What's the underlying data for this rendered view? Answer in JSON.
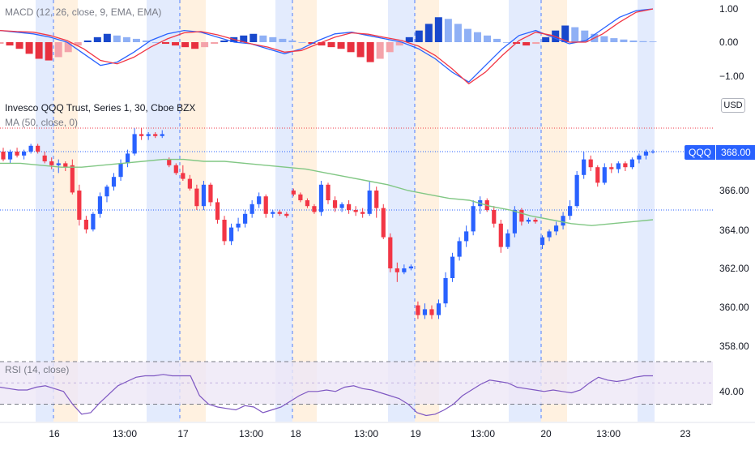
{
  "colors": {
    "up": "#2962ff",
    "down": "#f23645",
    "ma": "#81c784",
    "macd_line": "#2962ff",
    "signal_line": "#f23645",
    "rsi_line": "#7e57c2",
    "rsi_band": "#ede7f6",
    "session_blue": "#e3ebfd",
    "session_orange": "#fff1e0",
    "grid_dash": "#2962ff"
  },
  "macd": {
    "legend": "MACD (12, 26, close, 9, EMA, EMA)",
    "axis_ticks": [
      "1.00",
      "0.00",
      "−1.00"
    ]
  },
  "price": {
    "legend": "Invesco QQQ Trust, Series 1, 30, Cboe BZX",
    "ma_legend": "MA (50, close, 0)",
    "currency": "USD",
    "symbol": "QQQ",
    "last": "368.00",
    "axis_ticks": [
      "366.00",
      "364.00",
      "362.00",
      "360.00",
      "358.00"
    ]
  },
  "rsi": {
    "legend": "RSI (14, close)",
    "axis_tick": "40.00"
  },
  "time_axis": [
    "16",
    "13:00",
    "17",
    "13:00",
    "18",
    "13:00",
    "19",
    "13:00",
    "20",
    "13:00",
    "23"
  ],
  "chart_data": {
    "type": "candlestick",
    "title": "Invesco QQQ Trust, Series 1, 30, Cboe BZX",
    "ylim": [
      357.2,
      371.2
    ],
    "candles": [
      {
        "o": 368.0,
        "h": 368.2,
        "l": 367.5,
        "c": 367.6
      },
      {
        "o": 367.6,
        "h": 368.1,
        "l": 367.4,
        "c": 368.0
      },
      {
        "o": 368.0,
        "h": 368.2,
        "l": 367.7,
        "c": 367.8
      },
      {
        "o": 367.8,
        "h": 368.1,
        "l": 367.6,
        "c": 368.0
      },
      {
        "o": 368.0,
        "h": 368.4,
        "l": 367.9,
        "c": 368.3
      },
      {
        "o": 368.3,
        "h": 368.4,
        "l": 367.9,
        "c": 368.0
      },
      {
        "o": 367.8,
        "h": 368.0,
        "l": 367.4,
        "c": 367.5
      },
      {
        "o": 367.5,
        "h": 367.7,
        "l": 367.1,
        "c": 367.3
      },
      {
        "o": 367.3,
        "h": 367.6,
        "l": 366.9,
        "c": 367.4
      },
      {
        "o": 367.4,
        "h": 367.5,
        "l": 367.0,
        "c": 367.2
      },
      {
        "o": 367.3,
        "h": 367.6,
        "l": 365.8,
        "c": 365.9
      },
      {
        "o": 366.0,
        "h": 366.3,
        "l": 364.2,
        "c": 364.5
      },
      {
        "o": 364.5,
        "h": 364.7,
        "l": 363.8,
        "c": 364.0
      },
      {
        "o": 364.0,
        "h": 364.9,
        "l": 363.9,
        "c": 364.8
      },
      {
        "o": 364.8,
        "h": 365.9,
        "l": 364.6,
        "c": 365.7
      },
      {
        "o": 365.7,
        "h": 366.3,
        "l": 365.4,
        "c": 366.2
      },
      {
        "o": 366.2,
        "h": 366.9,
        "l": 366.0,
        "c": 366.7
      },
      {
        "o": 366.7,
        "h": 367.6,
        "l": 366.5,
        "c": 367.4
      },
      {
        "o": 367.4,
        "h": 368.1,
        "l": 367.2,
        "c": 367.9
      },
      {
        "o": 367.9,
        "h": 369.2,
        "l": 367.8,
        "c": 368.9
      },
      {
        "o": 368.9,
        "h": 369.2,
        "l": 368.6,
        "c": 368.8
      },
      {
        "o": 368.8,
        "h": 369.0,
        "l": 368.6,
        "c": 368.9
      },
      {
        "o": 368.9,
        "h": 369.0,
        "l": 368.7,
        "c": 368.8
      },
      {
        "o": 368.8,
        "h": 369.1,
        "l": 368.7,
        "c": 368.9
      },
      {
        "o": 367.6,
        "h": 367.7,
        "l": 367.2,
        "c": 367.3
      },
      {
        "o": 367.3,
        "h": 367.4,
        "l": 366.8,
        "c": 366.9
      },
      {
        "o": 366.9,
        "h": 367.3,
        "l": 366.5,
        "c": 366.6
      },
      {
        "o": 366.6,
        "h": 366.8,
        "l": 366.0,
        "c": 366.1
      },
      {
        "o": 366.1,
        "h": 366.3,
        "l": 365.0,
        "c": 365.2
      },
      {
        "o": 365.2,
        "h": 366.5,
        "l": 365.0,
        "c": 366.3
      },
      {
        "o": 366.3,
        "h": 366.4,
        "l": 365.2,
        "c": 365.4
      },
      {
        "o": 365.4,
        "h": 365.6,
        "l": 364.3,
        "c": 364.5
      },
      {
        "o": 364.5,
        "h": 364.7,
        "l": 363.2,
        "c": 363.4
      },
      {
        "o": 363.4,
        "h": 364.3,
        "l": 363.2,
        "c": 364.1
      },
      {
        "o": 364.1,
        "h": 364.6,
        "l": 363.9,
        "c": 364.3
      },
      {
        "o": 364.3,
        "h": 365.0,
        "l": 364.1,
        "c": 364.8
      },
      {
        "o": 364.8,
        "h": 365.5,
        "l": 364.6,
        "c": 365.3
      },
      {
        "o": 365.3,
        "h": 365.9,
        "l": 365.1,
        "c": 365.7
      },
      {
        "o": 365.7,
        "h": 365.8,
        "l": 364.6,
        "c": 364.8
      },
      {
        "o": 364.8,
        "h": 365.0,
        "l": 364.6,
        "c": 364.9
      },
      {
        "o": 364.9,
        "h": 365.0,
        "l": 364.7,
        "c": 364.8
      },
      {
        "o": 364.8,
        "h": 364.9,
        "l": 364.6,
        "c": 364.7
      },
      {
        "o": 366.0,
        "h": 366.1,
        "l": 365.7,
        "c": 365.8
      },
      {
        "o": 365.8,
        "h": 365.9,
        "l": 365.4,
        "c": 365.5
      },
      {
        "o": 365.5,
        "h": 365.6,
        "l": 365.1,
        "c": 365.2
      },
      {
        "o": 365.2,
        "h": 365.3,
        "l": 364.8,
        "c": 364.9
      },
      {
        "o": 364.9,
        "h": 366.5,
        "l": 364.7,
        "c": 366.3
      },
      {
        "o": 366.3,
        "h": 366.4,
        "l": 365.3,
        "c": 365.5
      },
      {
        "o": 365.5,
        "h": 365.7,
        "l": 364.9,
        "c": 365.1
      },
      {
        "o": 365.1,
        "h": 365.4,
        "l": 364.9,
        "c": 365.3
      },
      {
        "o": 365.3,
        "h": 365.5,
        "l": 364.8,
        "c": 365.0
      },
      {
        "o": 365.0,
        "h": 365.2,
        "l": 364.7,
        "c": 364.9
      },
      {
        "o": 364.9,
        "h": 365.1,
        "l": 364.6,
        "c": 364.8
      },
      {
        "o": 364.8,
        "h": 366.5,
        "l": 364.7,
        "c": 366.0
      },
      {
        "o": 366.0,
        "h": 366.2,
        "l": 364.6,
        "c": 365.1
      },
      {
        "o": 365.1,
        "h": 365.3,
        "l": 363.5,
        "c": 363.6
      },
      {
        "o": 363.6,
        "h": 363.8,
        "l": 361.8,
        "c": 362.0
      },
      {
        "o": 362.0,
        "h": 362.3,
        "l": 361.3,
        "c": 361.8
      },
      {
        "o": 361.8,
        "h": 362.2,
        "l": 361.7,
        "c": 362.0
      },
      {
        "o": 362.0,
        "h": 362.2,
        "l": 361.9,
        "c": 362.1
      },
      {
        "o": 360.1,
        "h": 360.3,
        "l": 359.4,
        "c": 359.6
      },
      {
        "o": 359.6,
        "h": 360.2,
        "l": 359.4,
        "c": 359.9
      },
      {
        "o": 359.9,
        "h": 360.1,
        "l": 359.4,
        "c": 359.6
      },
      {
        "o": 359.6,
        "h": 360.4,
        "l": 359.4,
        "c": 360.2
      },
      {
        "o": 360.2,
        "h": 361.8,
        "l": 360.0,
        "c": 361.5
      },
      {
        "o": 361.5,
        "h": 362.8,
        "l": 361.3,
        "c": 362.6
      },
      {
        "o": 362.6,
        "h": 363.6,
        "l": 362.4,
        "c": 363.4
      },
      {
        "o": 363.4,
        "h": 364.2,
        "l": 363.1,
        "c": 363.9
      },
      {
        "o": 363.9,
        "h": 365.5,
        "l": 363.7,
        "c": 365.2
      },
      {
        "o": 365.2,
        "h": 365.7,
        "l": 364.8,
        "c": 365.5
      },
      {
        "o": 365.5,
        "h": 365.6,
        "l": 364.9,
        "c": 365.0
      },
      {
        "o": 365.0,
        "h": 365.2,
        "l": 364.1,
        "c": 364.3
      },
      {
        "o": 364.3,
        "h": 364.5,
        "l": 362.8,
        "c": 363.1
      },
      {
        "o": 363.1,
        "h": 364.0,
        "l": 363.0,
        "c": 363.8
      },
      {
        "o": 363.8,
        "h": 365.2,
        "l": 363.6,
        "c": 365.0
      },
      {
        "o": 365.0,
        "h": 365.1,
        "l": 364.2,
        "c": 364.4
      },
      {
        "o": 364.4,
        "h": 364.6,
        "l": 364.3,
        "c": 364.5
      },
      {
        "o": 364.5,
        "h": 364.6,
        "l": 364.3,
        "c": 364.4
      },
      {
        "o": 363.2,
        "h": 363.7,
        "l": 363.0,
        "c": 363.6
      },
      {
        "o": 363.6,
        "h": 364.0,
        "l": 363.4,
        "c": 363.9
      },
      {
        "o": 363.9,
        "h": 364.4,
        "l": 363.7,
        "c": 364.2
      },
      {
        "o": 364.2,
        "h": 364.9,
        "l": 364.0,
        "c": 364.7
      },
      {
        "o": 364.7,
        "h": 365.5,
        "l": 364.5,
        "c": 365.2
      },
      {
        "o": 365.2,
        "h": 367.0,
        "l": 365.1,
        "c": 366.8
      },
      {
        "o": 366.8,
        "h": 368.0,
        "l": 366.6,
        "c": 367.6
      },
      {
        "o": 367.6,
        "h": 367.8,
        "l": 367.0,
        "c": 367.2
      },
      {
        "o": 367.2,
        "h": 367.3,
        "l": 366.2,
        "c": 366.4
      },
      {
        "o": 366.4,
        "h": 367.4,
        "l": 366.3,
        "c": 367.2
      },
      {
        "o": 367.2,
        "h": 367.4,
        "l": 366.9,
        "c": 367.1
      },
      {
        "o": 367.1,
        "h": 367.5,
        "l": 366.9,
        "c": 367.4
      },
      {
        "o": 367.4,
        "h": 367.5,
        "l": 367.0,
        "c": 367.2
      },
      {
        "o": 367.2,
        "h": 367.7,
        "l": 367.1,
        "c": 367.6
      },
      {
        "o": 367.6,
        "h": 367.9,
        "l": 367.4,
        "c": 367.8
      },
      {
        "o": 367.8,
        "h": 368.1,
        "l": 367.6,
        "c": 368.0
      },
      {
        "o": 368.0,
        "h": 368.1,
        "l": 367.9,
        "c": 368.0
      }
    ],
    "ma50": [
      367.4,
      367.4,
      367.3,
      367.2,
      367.2,
      367.3,
      367.4,
      367.5,
      367.6,
      367.6,
      367.5,
      367.5,
      367.4,
      367.3,
      367.2,
      367.1,
      366.9,
      366.7,
      366.5,
      366.3,
      366.0,
      365.8,
      365.6,
      365.5,
      365.2,
      365.0,
      364.7,
      364.5,
      364.3,
      364.2,
      364.3,
      364.4,
      364.5
    ],
    "macd_hist": [
      -0.05,
      -0.1,
      -0.2,
      -0.35,
      -0.5,
      -0.55,
      -0.45,
      -0.3,
      -0.1,
      0.05,
      0.15,
      0.25,
      0.2,
      0.15,
      0.1,
      0.05,
      0.0,
      -0.05,
      -0.1,
      -0.15,
      -0.2,
      -0.15,
      -0.05,
      0.05,
      0.15,
      0.2,
      0.25,
      0.2,
      0.15,
      0.1,
      0.05,
      0.0,
      -0.05,
      -0.1,
      -0.15,
      -0.2,
      -0.3,
      -0.45,
      -0.6,
      -0.5,
      -0.3,
      -0.1,
      0.15,
      0.35,
      0.55,
      0.75,
      0.7,
      0.55,
      0.4,
      0.3,
      0.2,
      0.1,
      0.0,
      -0.05,
      -0.1,
      -0.05,
      0.15,
      0.35,
      0.5,
      0.45,
      0.35,
      0.25,
      0.18,
      0.12,
      0.08,
      0.05,
      0.03,
      0.02
    ],
    "rsi": [
      52,
      51,
      50,
      50,
      52,
      53,
      51,
      49,
      40,
      33,
      34,
      41,
      47,
      53,
      56,
      59,
      60,
      60,
      61,
      60,
      60,
      60,
      46,
      40,
      38,
      37,
      36,
      39,
      38,
      34,
      36,
      38,
      42,
      46,
      49,
      49,
      50,
      49,
      52,
      53,
      51,
      50,
      48,
      46,
      44,
      40,
      34,
      32,
      33,
      36,
      40,
      46,
      50,
      54,
      57,
      56,
      55,
      52,
      51,
      50,
      49,
      50,
      49,
      48,
      50,
      55,
      59,
      57,
      56,
      57,
      59,
      60,
      60
    ],
    "rsi_band": [
      40,
      70
    ]
  }
}
